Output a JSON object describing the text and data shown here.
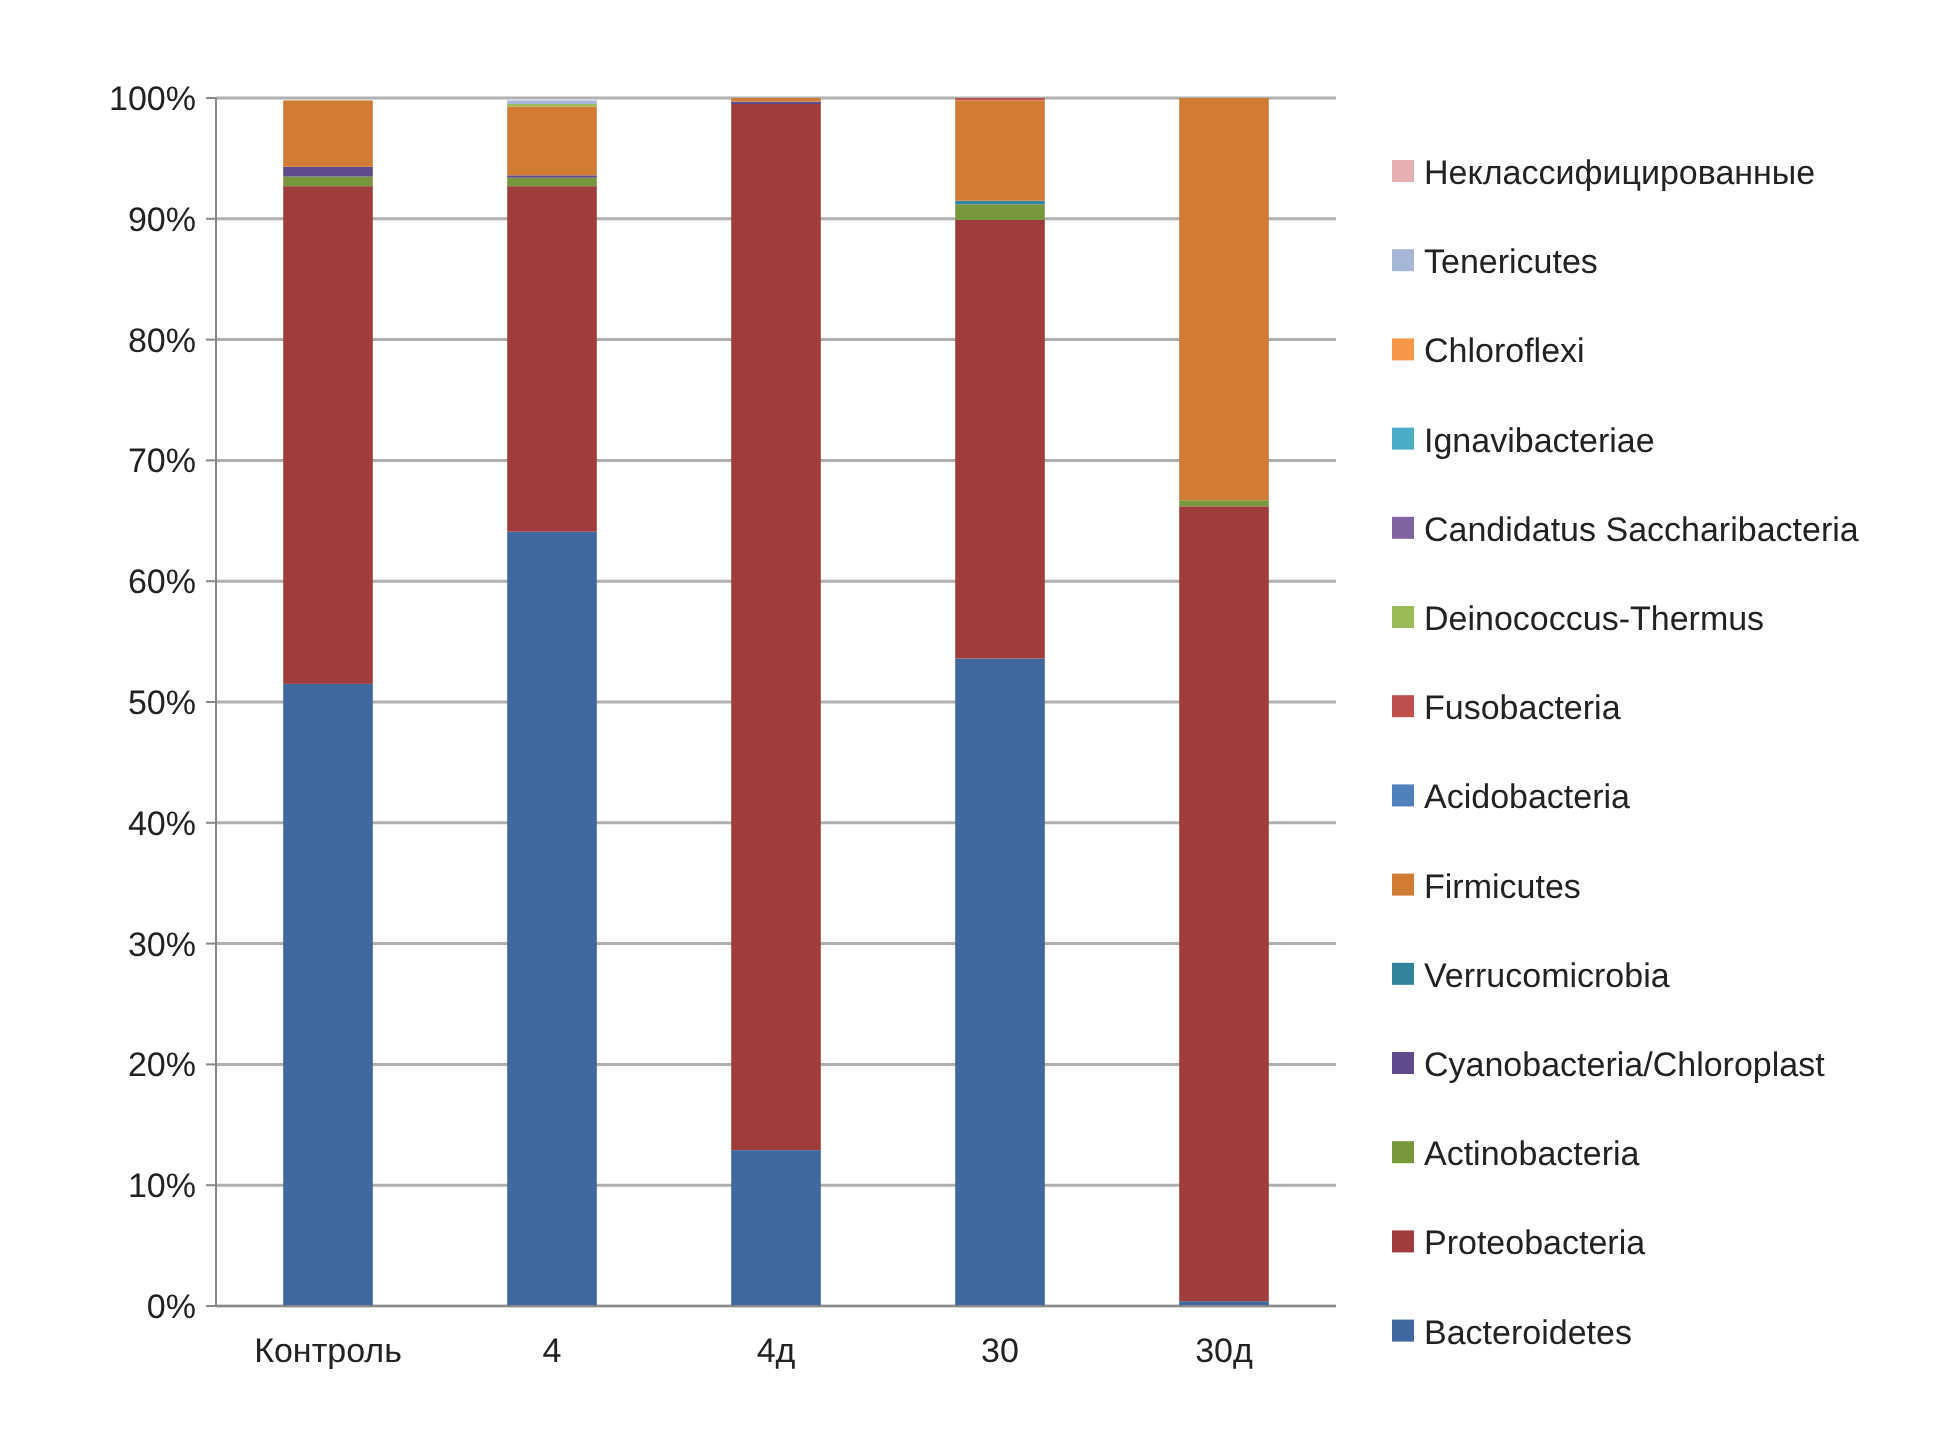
{
  "chart_data": {
    "type": "bar",
    "stacked": true,
    "categories": [
      "Контроль",
      "4",
      "4д",
      "30",
      "30д"
    ],
    "ylim": [
      0,
      100
    ],
    "yticks": [
      {
        "value": 0,
        "label": "0%"
      },
      {
        "value": 10,
        "label": "10%"
      },
      {
        "value": 20,
        "label": "20%"
      },
      {
        "value": 30,
        "label": "30%"
      },
      {
        "value": 40,
        "label": "40%"
      },
      {
        "value": 50,
        "label": "50%"
      },
      {
        "value": 60,
        "label": "60%"
      },
      {
        "value": 70,
        "label": "70%"
      },
      {
        "value": 80,
        "label": "80%"
      },
      {
        "value": 90,
        "label": "90%"
      },
      {
        "value": 100,
        "label": "100%"
      }
    ],
    "grid": "y",
    "legend": "right",
    "series": [
      {
        "name": "Bacteroidetes",
        "color": "#3f68a0",
        "values": [
          51.5,
          64.1,
          12.9,
          53.6,
          0.4
        ]
      },
      {
        "name": "Proteobacteria",
        "color": "#9e3d3b",
        "values": [
          41.2,
          28.6,
          86.6,
          36.3,
          65.8
        ]
      },
      {
        "name": "Actinobacteria",
        "color": "#77973d",
        "values": [
          0.8,
          0.7,
          0,
          1.3,
          0.5
        ]
      },
      {
        "name": "Cyanobacteria/Chloroplast",
        "color": "#5f4a8b",
        "values": [
          0.8,
          0.2,
          0.2,
          0,
          0
        ]
      },
      {
        "name": "Verrucomicrobia",
        "color": "#31849b",
        "values": [
          0,
          0,
          0,
          0.3,
          0
        ]
      },
      {
        "name": "Firmicutes",
        "color": "#d07c34",
        "values": [
          5.5,
          5.7,
          0.3,
          8.3,
          33.3
        ]
      },
      {
        "name": "Acidobacteria",
        "color": "#4f81bd",
        "values": [
          0,
          0,
          0,
          0,
          0
        ]
      },
      {
        "name": "Fusobacteria",
        "color": "#c0504d",
        "values": [
          0,
          0,
          0,
          0.2,
          0
        ]
      },
      {
        "name": "Deinococcus-Thermus",
        "color": "#9bbb59",
        "values": [
          0,
          0.2,
          0,
          0,
          0
        ]
      },
      {
        "name": "Candidatus Saccharibacteria",
        "color": "#8064a2",
        "values": [
          0,
          0,
          0,
          0,
          0
        ]
      },
      {
        "name": "Ignavibacteriae",
        "color": "#4bacc6",
        "values": [
          0,
          0,
          0,
          0,
          0
        ]
      },
      {
        "name": "Chloroflexi",
        "color": "#f79646",
        "values": [
          0,
          0,
          0,
          0,
          0
        ]
      },
      {
        "name": "Tenericutes",
        "color": "#a5b6d8",
        "values": [
          0,
          0.3,
          0,
          0,
          0
        ]
      },
      {
        "name": "Неклассифицированные",
        "color": "#e6b0b2",
        "values": [
          null,
          null,
          0,
          0,
          0
        ]
      }
    ]
  }
}
